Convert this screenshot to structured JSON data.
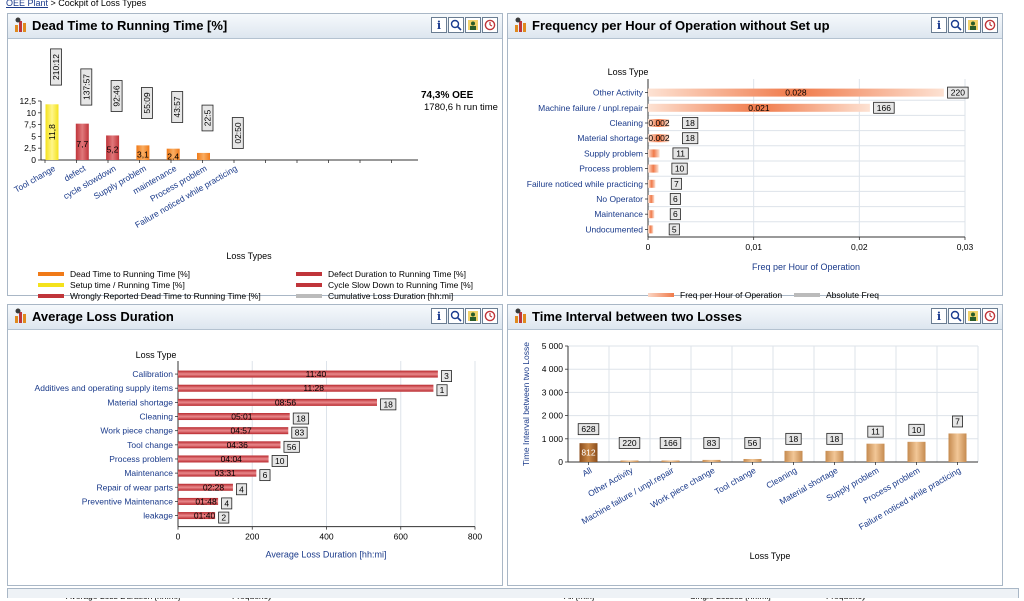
{
  "breadcrumb": {
    "link": "OEE Plant",
    "sep": " > ",
    "current": "Cockpit of Loss Types"
  },
  "panels": {
    "dead_time": {
      "title": "Dead Time to Running Time [%]",
      "oee_value": "74,3% OEE",
      "run_time": "1780,6 h run time",
      "xaxis_title": "Loss Types",
      "legend": [
        {
          "label": "Dead Time to Running Time [%]",
          "color": "#f07a18"
        },
        {
          "label": "Defect Duration to Running Time [%]",
          "color": "#c0353a"
        },
        {
          "label": "Setup time / Running Time [%]",
          "color": "#f4e21c"
        },
        {
          "label": "Cycle Slow Down to Running Time [%]",
          "color": "#c0353a"
        },
        {
          "label": "Wrongly Reported Dead Time to Running Time [%]",
          "color": "#c0353a"
        },
        {
          "label": "Cumulative Loss Duration [hh:mi]",
          "color": "#bbbbbb"
        }
      ]
    },
    "frequency": {
      "title": "Frequency per Hour of Operation without Set up",
      "legend": [
        {
          "label": "Freq per Hour of Operation",
          "color": "#f4a07a"
        },
        {
          "label": "Absolute Freq",
          "color": "#bbbbbb"
        }
      ]
    },
    "avg_loss": {
      "title": "Average Loss Duration",
      "legend": [
        {
          "label": "Average Loss Duration [hh:mi]",
          "color": "#c0353a"
        },
        {
          "label": "Frequency",
          "color": "#bbbbbb"
        }
      ]
    },
    "interval": {
      "title": "Time Interval between two Losses",
      "legend": [
        {
          "label": "All [min]",
          "color": "#a9652a"
        },
        {
          "label": "Single Losses [hh:mi]",
          "color": "#d8a06a"
        },
        {
          "label": "Frequency",
          "color": "#bbbbbb"
        }
      ]
    }
  },
  "chart_data": [
    {
      "type": "bar",
      "title": "Dead Time to Running Time [%]",
      "xlabel": "Loss Types",
      "ylabel": "",
      "ylim": [
        0,
        12.5
      ],
      "yticks": [
        "0",
        "2,5",
        "5",
        "7,5",
        "10",
        "12,5"
      ],
      "categories": [
        "Tool change",
        "defect",
        "cycle slowdown",
        "Supply problem",
        "maintenance",
        "Process problem",
        "Failure noticed while practicing"
      ],
      "values": [
        11.8,
        7.7,
        5.2,
        3.1,
        2.4,
        1.5,
        0
      ],
      "value_labels": [
        "11,8",
        "7,7",
        "5,2",
        "3,1",
        "2,4",
        "",
        ""
      ],
      "colors": [
        "#f4e21c",
        "#c0353a",
        "#c0353a",
        "#f07a18",
        "#f07a18",
        "#f07a18",
        "#f07a18"
      ],
      "cumulative_labels": [
        "210:12",
        "137:57",
        "92:46",
        "55:09",
        "43:57",
        "22:5",
        "02:50"
      ]
    },
    {
      "type": "bar",
      "title": "Frequency per Hour of Operation without Set up",
      "ylabel": "Loss Type",
      "xlabel": "Freq per Hour of Operation",
      "xlim": [
        0,
        0.03
      ],
      "xticks": [
        "0",
        "0,01",
        "0,02",
        "0,03"
      ],
      "categories": [
        "Other Activity",
        "Machine failure / unpl.repair",
        "Cleaning",
        "Material shortage",
        "Supply problem",
        "Process problem",
        "Failure noticed while practicing",
        "No Operator",
        "Maintenance",
        "Undocumented"
      ],
      "values": [
        0.028,
        0.021,
        0.002,
        0.002,
        0.0011,
        0.001,
        0.0007,
        0.0006,
        0.0006,
        0.0005
      ],
      "value_labels": [
        "0.028",
        "0.021",
        "0.002",
        "0.002",
        "",
        "",
        "",
        "",
        "",
        ""
      ],
      "frequency": [
        220,
        166,
        18,
        18,
        11,
        10,
        7,
        6,
        6,
        5
      ]
    },
    {
      "type": "bar",
      "title": "Average Loss Duration",
      "ylabel": "Loss Type",
      "xlabel": "Average Loss Duration [hh:mi]",
      "xlim": [
        0,
        800
      ],
      "xticks": [
        "0",
        "200",
        "400",
        "600",
        "800"
      ],
      "categories": [
        "Calibration",
        "Additives and operating supply items",
        "Material shortage",
        "Cleaning",
        "Work piece change",
        "Tool change",
        "Process problem",
        "Maintenance",
        "Repair of wear parts",
        "Preventive Maintenance",
        "leakage"
      ],
      "values": [
        700,
        688,
        536,
        301,
        297,
        276,
        244,
        211,
        148,
        108,
        100
      ],
      "value_labels": [
        "11:40",
        "11:28",
        "08:56",
        "05:01",
        "04:57",
        "04:36",
        "04:04",
        "03:31",
        "02:28",
        "01:48",
        "01:40"
      ],
      "frequency": [
        3,
        1,
        18,
        18,
        83,
        56,
        10,
        6,
        4,
        4,
        2
      ]
    },
    {
      "type": "bar",
      "title": "Time Interval between two Losses",
      "xlabel": "Loss Type",
      "ylabel": "Time Interval between two Losse",
      "ylim": [
        0,
        5000
      ],
      "yticks": [
        "0",
        "1 000",
        "2 000",
        "3 000",
        "4 000",
        "5 000"
      ],
      "categories": [
        "All",
        "Other Activity",
        "Machine failure / unpl.repair",
        "Work piece change",
        "Tool change",
        "Cleaning",
        "Material shortage",
        "Supply problem",
        "Process problem",
        "Failure noticed while practicing"
      ],
      "values": [
        812,
        10,
        30,
        90,
        130,
        480,
        480,
        790,
        870,
        1230
      ],
      "value_labels": [
        "812",
        "",
        "",
        "",
        "",
        "",
        "",
        "",
        "",
        ""
      ],
      "frequency": [
        628,
        220,
        166,
        83,
        56,
        18,
        18,
        11,
        10,
        7
      ]
    }
  ]
}
